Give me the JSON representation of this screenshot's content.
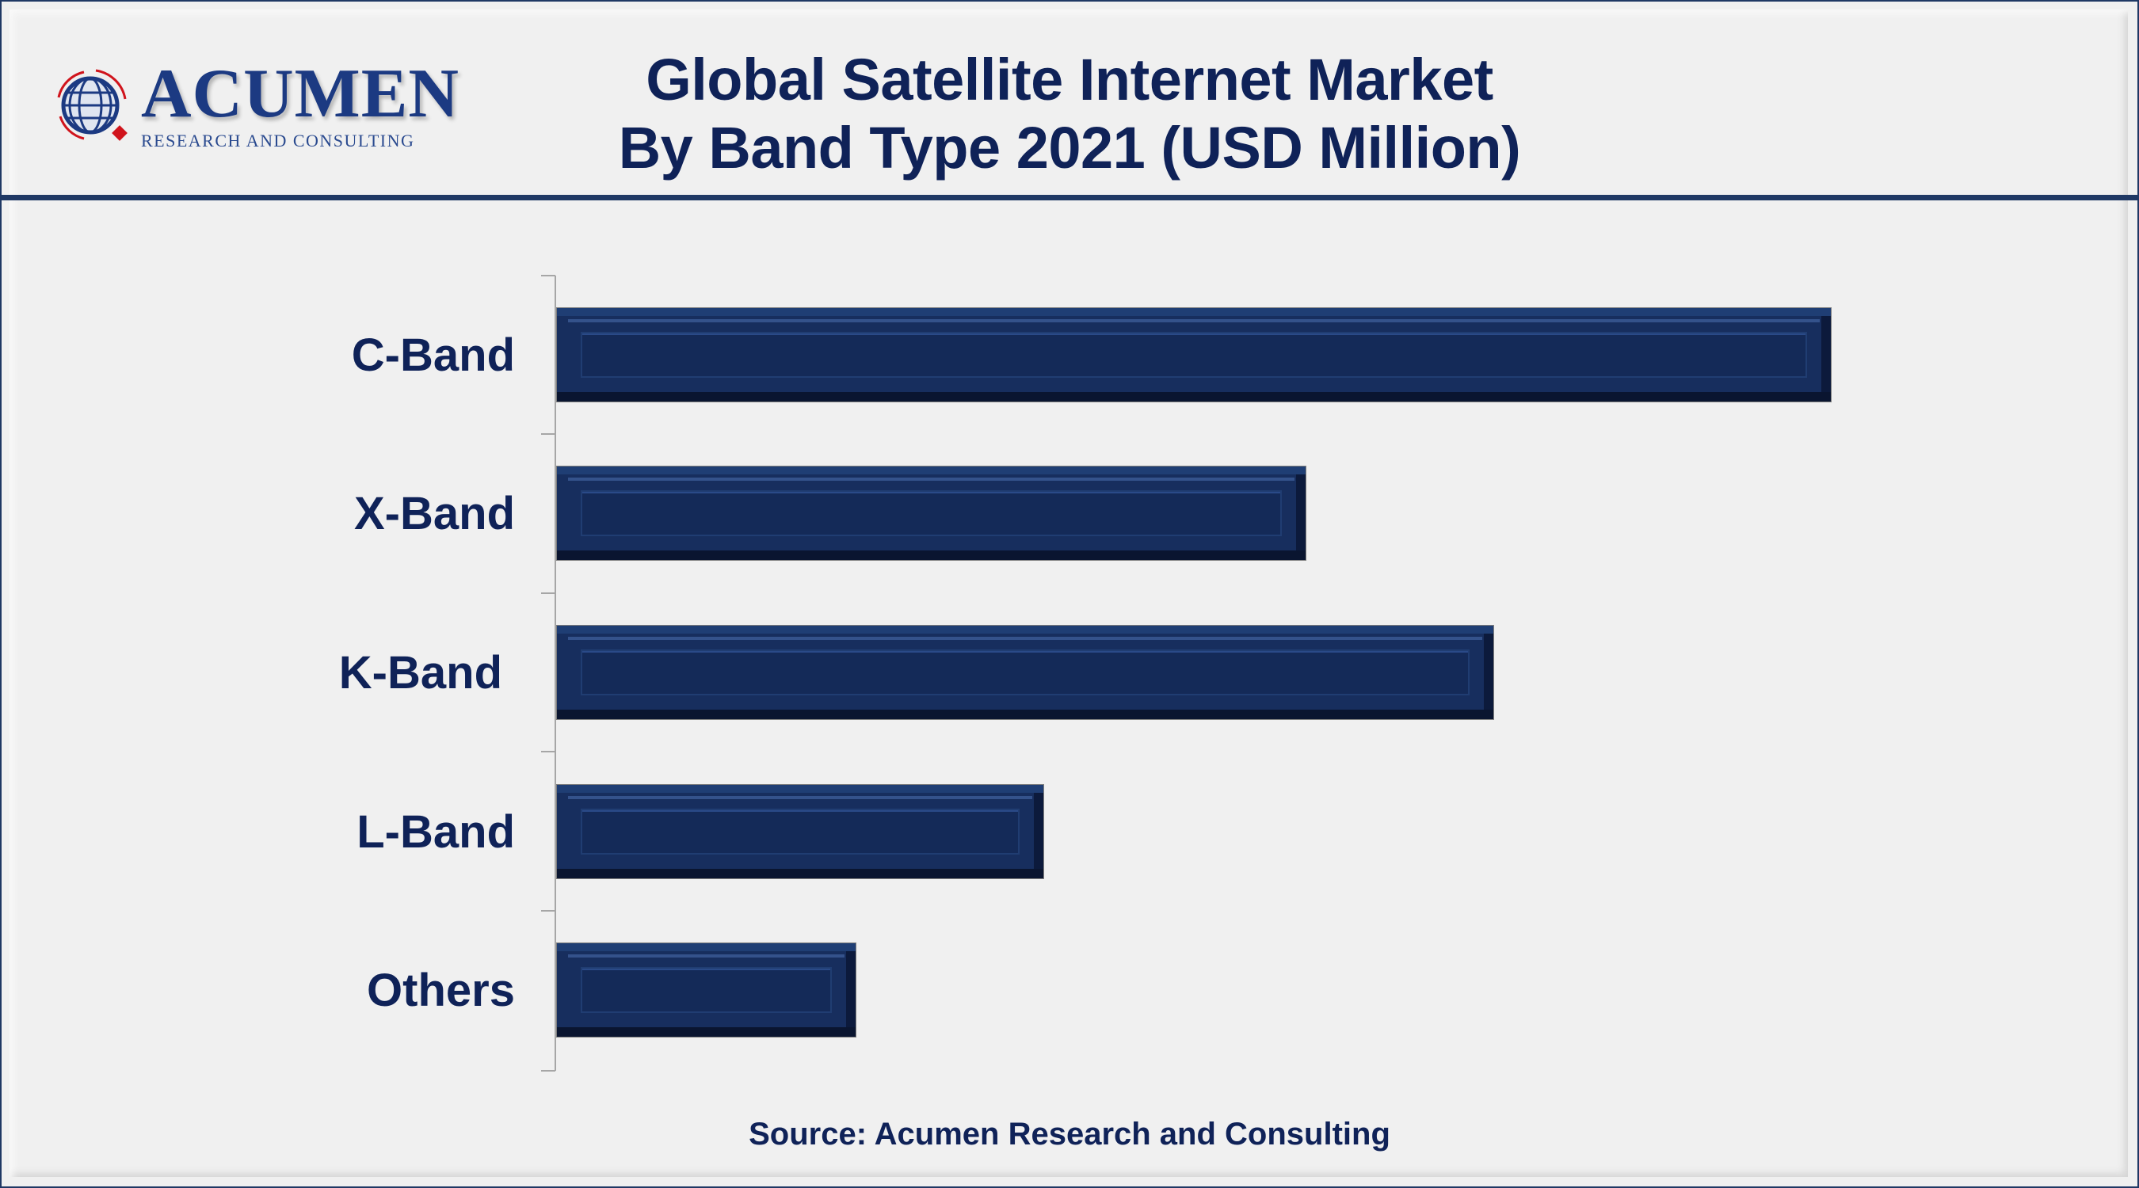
{
  "logo": {
    "name": "ACUMEN",
    "subtitle": "RESEARCH AND CONSULTING"
  },
  "title": {
    "line1": "Global Satellite Internet Market",
    "line2": "By Band Type 2021 (USD Million)"
  },
  "source": "Source: Acumen Research and Consulting",
  "colors": {
    "bar": "#172e5e",
    "text": "#0f2258",
    "divider": "#1f3864",
    "background": "#f0f0f0"
  },
  "chart_data": {
    "type": "bar",
    "orientation": "horizontal",
    "title": "Global Satellite Internet Market By Band Type 2021 (USD Million)",
    "xlabel": "",
    "ylabel": "",
    "categories": [
      "C-Band",
      "X-Band",
      "K-Band",
      "L-Band",
      "Others"
    ],
    "values": [
      1610,
      947,
      1184,
      616,
      379
    ],
    "values_note": "relative bar lengths (no value labels or axis ticks shown)",
    "grid": false,
    "legend": null,
    "source": "Source: Acumen Research and Consulting"
  }
}
